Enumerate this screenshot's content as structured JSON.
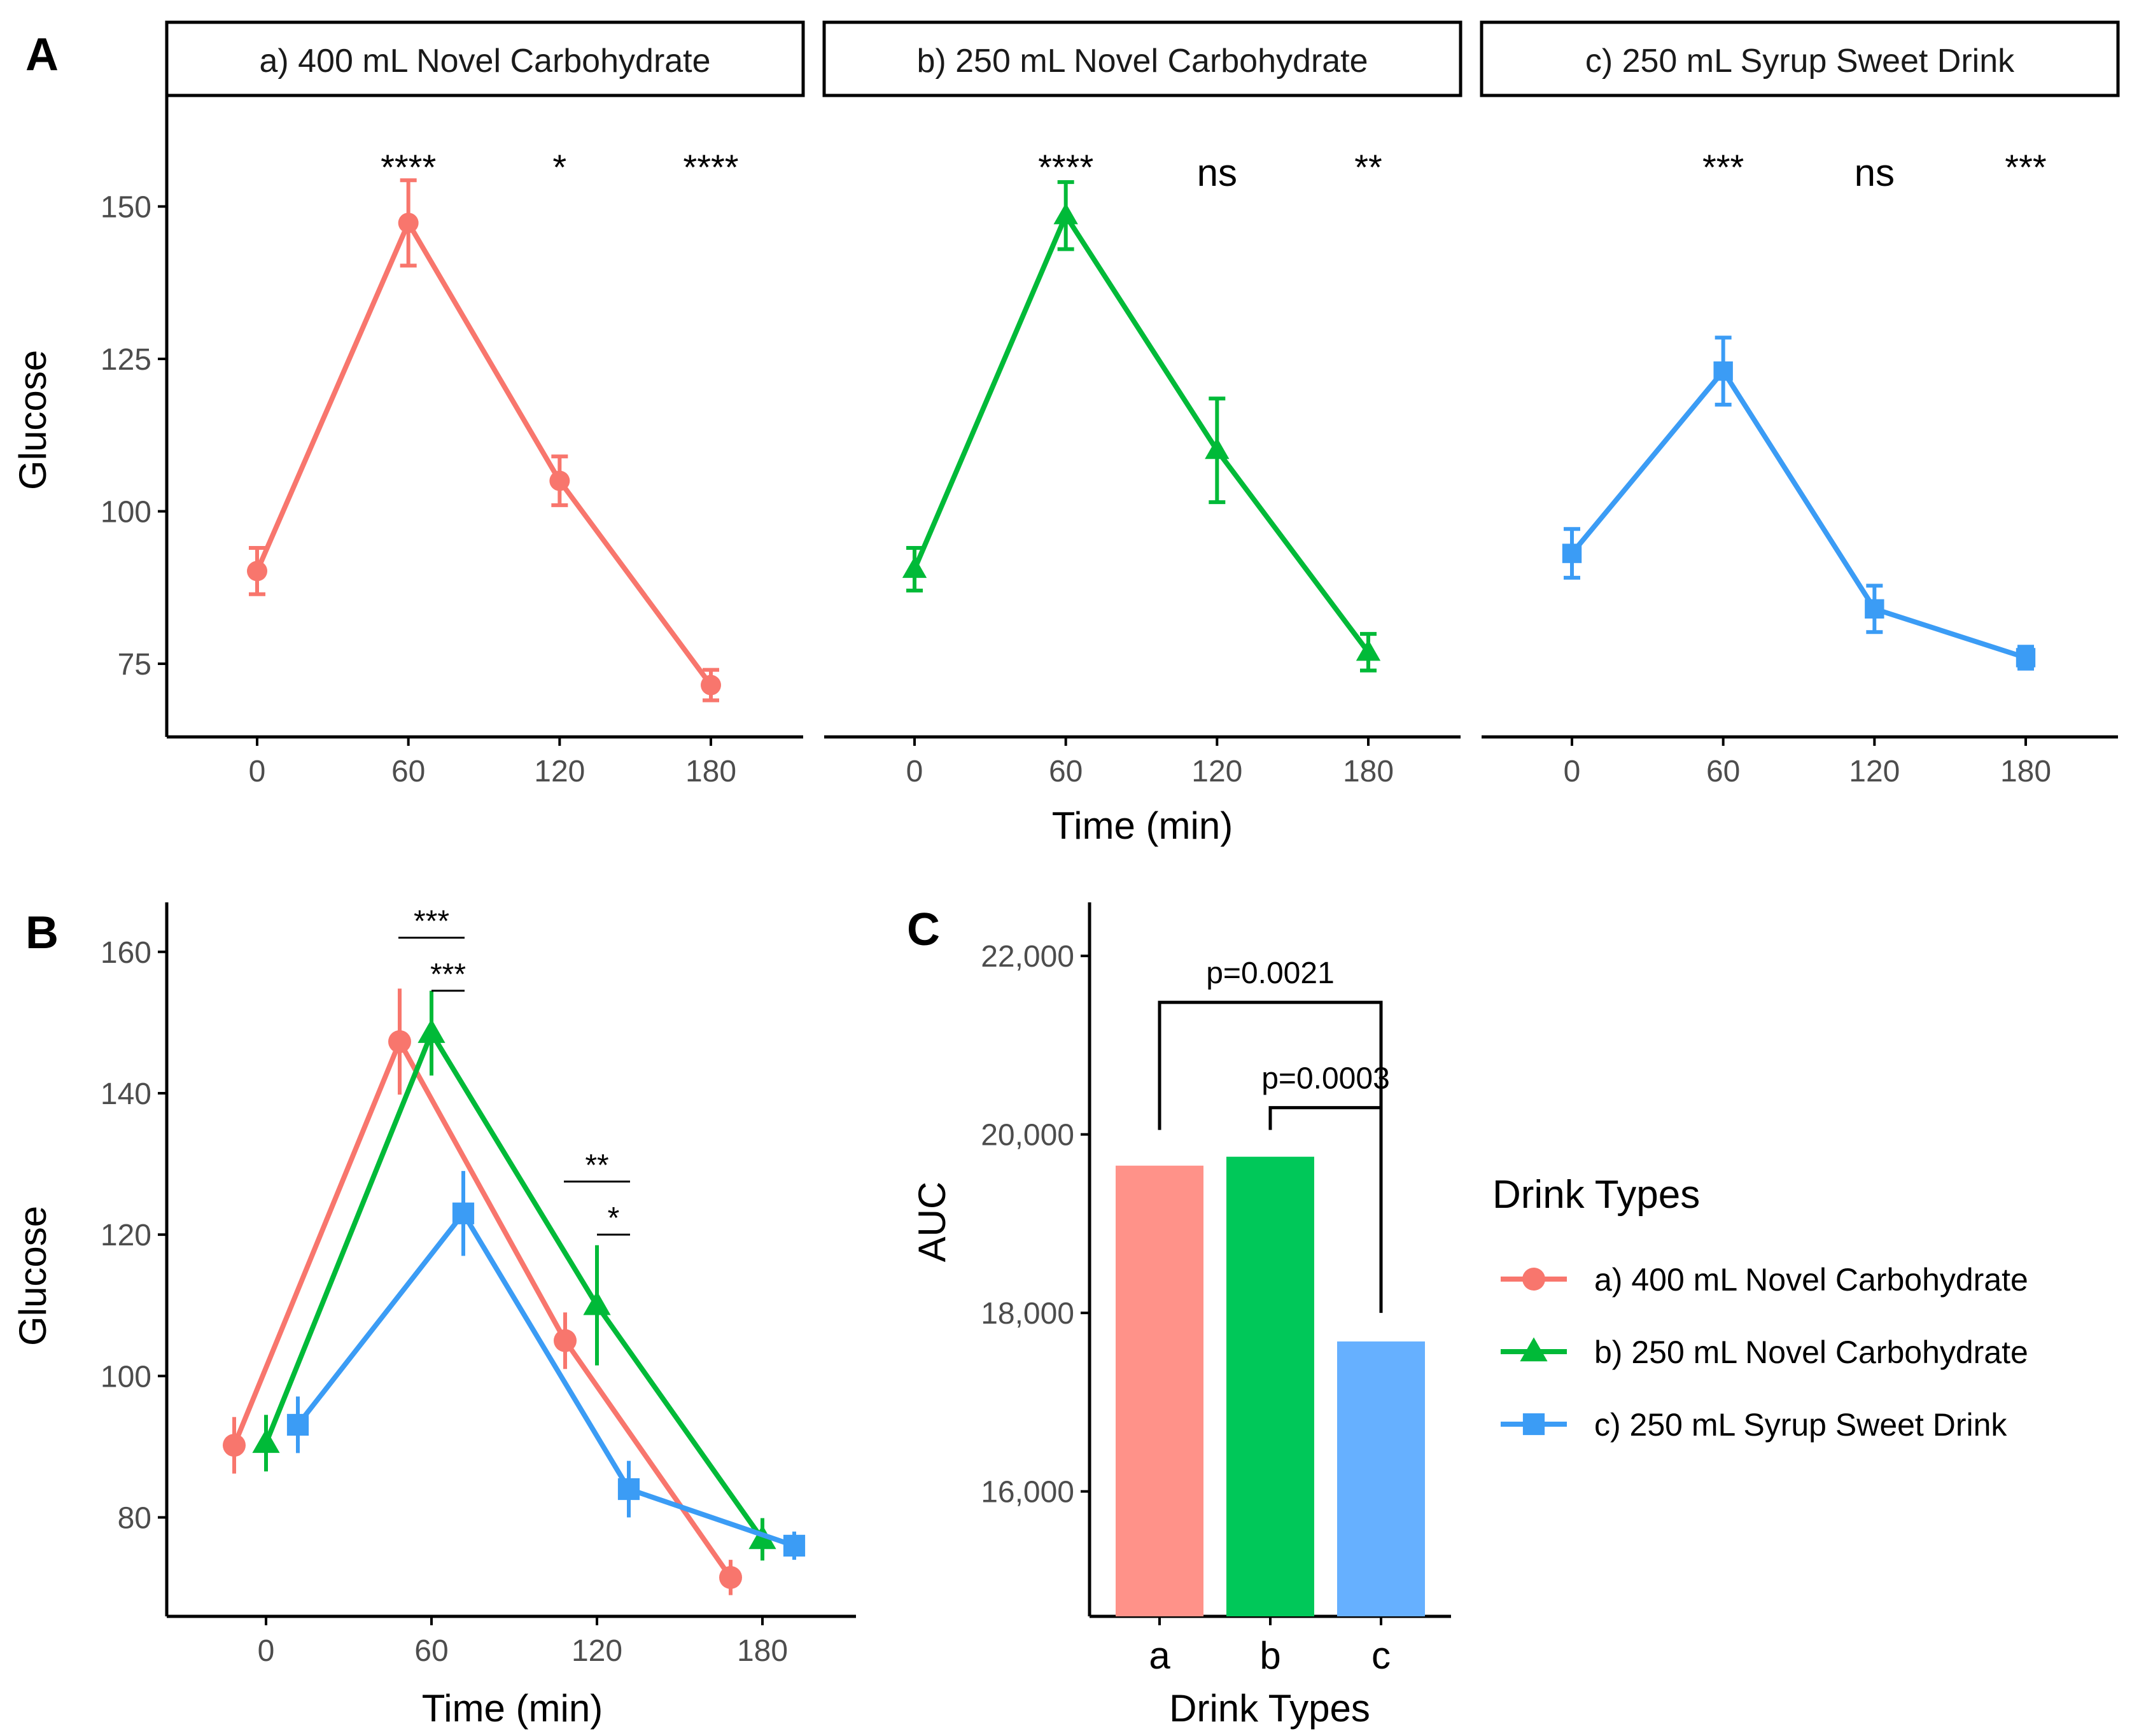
{
  "colors": {
    "a_line": "#F8766D",
    "b_line": "#00BA38",
    "c_line": "#3B9CF5",
    "a_bar": "#FF9289",
    "b_bar": "#00C859",
    "c_bar": "#66B0FF",
    "axis": "#000000",
    "tick_text": "#4D4D4D"
  },
  "panel_labels": {
    "A": "A",
    "B": "B",
    "C": "C"
  },
  "chart_data": [
    {
      "id": "A",
      "type": "line",
      "facets": [
        {
          "title": "a) 400 mL Novel Carbohydrate",
          "series": "a",
          "y": [
            90.2,
            147.3,
            105.0,
            71.5
          ],
          "err": [
            3.8,
            7.0,
            4.0,
            2.5
          ],
          "sig": [
            "****",
            "*",
            "****"
          ]
        },
        {
          "title": "b) 250 mL Novel Carbohydrate",
          "series": "b",
          "y": [
            90.5,
            148.5,
            110.0,
            76.9
          ],
          "err": [
            3.5,
            5.5,
            8.5,
            3.0
          ],
          "sig": [
            "****",
            "ns",
            "**"
          ]
        },
        {
          "title": "c) 250 mL Syrup Sweet Drink",
          "series": "c",
          "y": [
            93.1,
            123.0,
            84.0,
            76.0
          ],
          "err": [
            4.0,
            5.5,
            3.8,
            1.8
          ],
          "sig": [
            "***",
            "ns",
            "***"
          ]
        }
      ],
      "x": [
        0,
        60,
        120,
        180
      ],
      "xticks": [
        "0",
        "60",
        "120",
        "180"
      ],
      "yticks": [
        "75",
        "100",
        "125",
        "150"
      ],
      "ylim": [
        63,
        168
      ],
      "xlabel": "Time (min)",
      "ylabel": "Glucose"
    },
    {
      "id": "B",
      "type": "line",
      "series": [
        {
          "name": "a",
          "x": [
            0,
            60,
            120,
            180
          ],
          "y": [
            90.2,
            147.3,
            105.0,
            71.5
          ],
          "err": [
            4.0,
            7.5,
            4.0,
            2.5
          ]
        },
        {
          "name": "b",
          "x": [
            0,
            60,
            120,
            180
          ],
          "y": [
            90.5,
            148.5,
            110.0,
            76.9
          ],
          "err": [
            4.0,
            6.0,
            8.5,
            3.0
          ]
        },
        {
          "name": "c",
          "x": [
            0,
            60,
            120,
            180
          ],
          "y": [
            93.1,
            123.0,
            84.0,
            76.0
          ],
          "err": [
            4.0,
            6.0,
            4.0,
            2.0
          ]
        }
      ],
      "brackets": [
        {
          "label": "***",
          "x1": 48,
          "x2": 72,
          "y": 162.0
        },
        {
          "label": "***",
          "x1": 60,
          "x2": 72,
          "y": 154.5
        },
        {
          "label": "**",
          "x1": 108,
          "x2": 132,
          "y": 127.5
        },
        {
          "label": "*",
          "x1": 120,
          "x2": 132,
          "y": 120.0
        }
      ],
      "xticks": [
        "0",
        "60",
        "120",
        "180"
      ],
      "ylim": [
        66,
        167
      ],
      "yticks": [
        "80",
        "100",
        "120",
        "140",
        "160"
      ],
      "xlabel": "Time (min)",
      "ylabel": "Glucose"
    },
    {
      "id": "C",
      "type": "bar",
      "categories": [
        "a",
        "b",
        "c"
      ],
      "values": [
        19650,
        19750,
        17680
      ],
      "ylim": [
        14600,
        22600
      ],
      "yticks": [
        "16,000",
        "18,000",
        "20,000",
        "22,000"
      ],
      "xlabel": "Drink Types",
      "ylabel": "AUC",
      "brackets": [
        {
          "label": "p=0.0021",
          "from": "a",
          "to": "c",
          "y": 21480,
          "drop_left": 20050,
          "drop_right": 20050
        },
        {
          "label": "p=0.0003",
          "from": "b",
          "to": "c",
          "y": 20300,
          "drop_left": 20050,
          "drop_right": 18000
        }
      ]
    }
  ],
  "legend": {
    "title": "Drink Types",
    "items": [
      {
        "key": "a",
        "label": "a) 400 mL Novel Carbohydrate"
      },
      {
        "key": "b",
        "label": "b) 250 mL Novel Carbohydrate"
      },
      {
        "key": "c",
        "label": "c) 250 mL Syrup Sweet Drink"
      }
    ]
  }
}
